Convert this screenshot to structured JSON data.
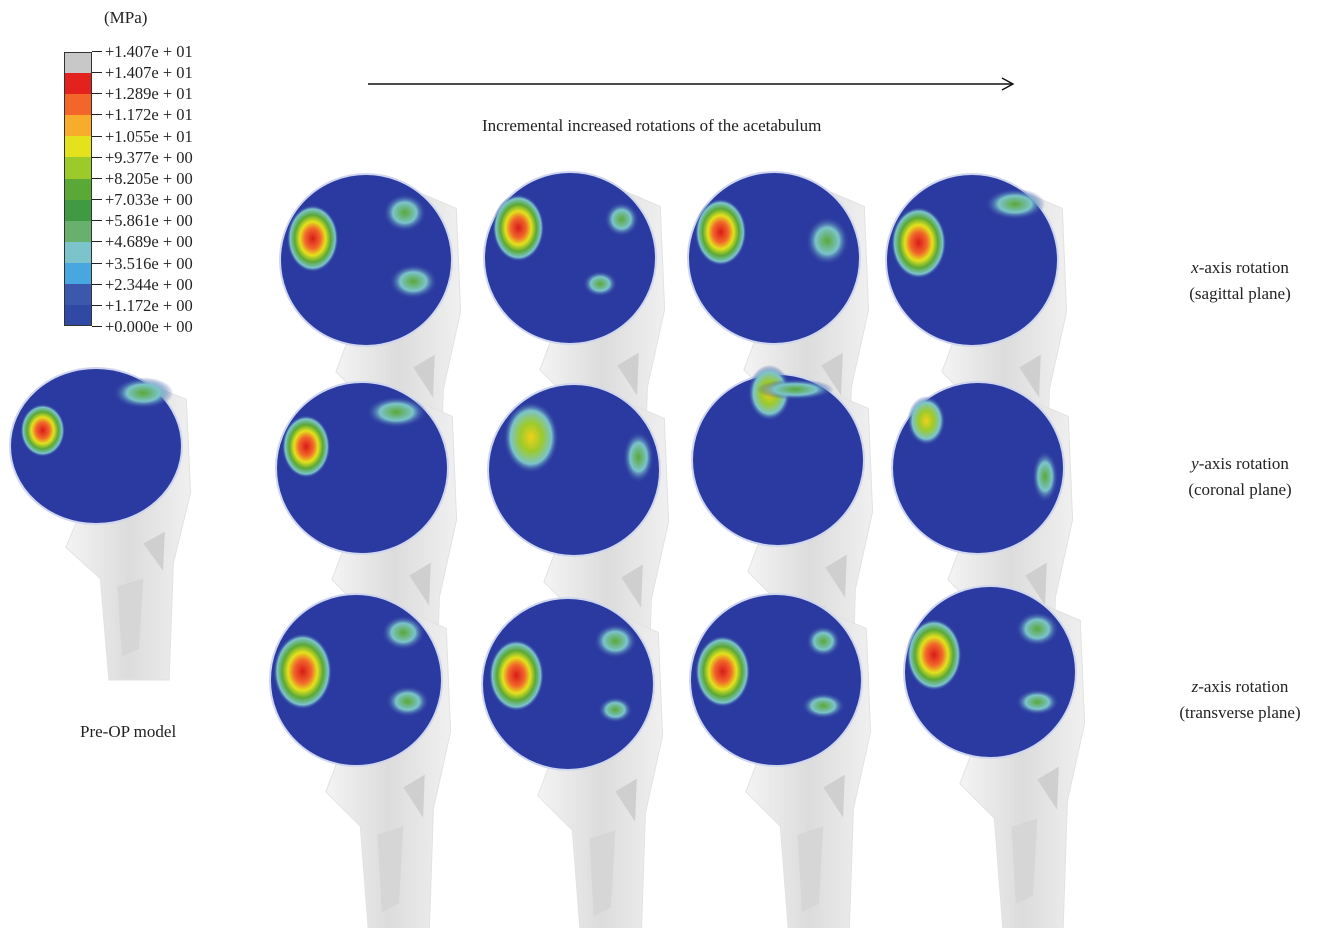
{
  "legend": {
    "unit": "(MPa)",
    "ticks": [
      "+1.407e + 01",
      "+1.407e + 01",
      "+1.289e + 01",
      "+1.172e + 01",
      "+1.055e + 01",
      "+9.377e + 00",
      "+8.205e + 00",
      "+7.033e + 00",
      "+5.861e + 00",
      "+4.689e + 00",
      "+3.516e + 00",
      "+2.344e + 00",
      "+1.172e + 00",
      "+0.000e + 00"
    ],
    "colors": [
      "#c8c8c8",
      "#e3221e",
      "#f2662a",
      "#f7ad2b",
      "#e4e21c",
      "#9cca2a",
      "#5aa836",
      "#3f9a42",
      "#68b06d",
      "#7cc4cc",
      "#49a7df",
      "#3b58ad",
      "#3049a4"
    ]
  },
  "header": {
    "arrow_caption": "Incremental increased rotations of the acetabulum"
  },
  "rows": [
    {
      "axis": "x",
      "axis_suffix": "-axis rotation",
      "plane": "(sagittal plane)"
    },
    {
      "axis": "y",
      "axis_suffix": "-axis rotation",
      "plane": "(coronal plane)"
    },
    {
      "axis": "z",
      "axis_suffix": "-axis rotation",
      "plane": "(transverse plane)"
    }
  ],
  "preop_label": "Pre-OP model",
  "colors": {
    "ball": "#2b3aa0",
    "bone": "#e6e6e6"
  }
}
